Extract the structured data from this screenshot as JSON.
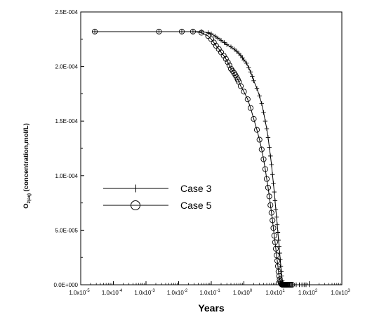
{
  "chart_data": {
    "type": "line",
    "xlabel": "Years",
    "ylabel": "O2(aq) (concentration,mol/L)",
    "ylabel_parts": {
      "main": "O",
      "sub": "2(aq)",
      "rest": " (concentration,mol/L)"
    },
    "xscale": "log",
    "xlim": [
      1e-05,
      1000
    ],
    "ylim": [
      0,
      0.00025
    ],
    "x_ticks": [
      {
        "v": 1e-05,
        "label": "1.0x10",
        "exp": "-5"
      },
      {
        "v": 0.0001,
        "label": "1.0x10",
        "exp": "-4"
      },
      {
        "v": 0.001,
        "label": "1.0x10",
        "exp": "-3"
      },
      {
        "v": 0.01,
        "label": "1.0x10",
        "exp": "-2"
      },
      {
        "v": 0.1,
        "label": "1.0x10",
        "exp": "-1"
      },
      {
        "v": 1,
        "label": "1.0x10",
        "exp": "0"
      },
      {
        "v": 10,
        "label": "1.0x10",
        "exp": "1"
      },
      {
        "v": 100,
        "label": "1.0x10",
        "exp": "2"
      },
      {
        "v": 1000,
        "label": "1.0x10",
        "exp": "3"
      }
    ],
    "y_ticks": [
      {
        "v": 0,
        "label": "0.0E+000"
      },
      {
        "v": 5e-05,
        "label": "5.0E-005"
      },
      {
        "v": 0.0001,
        "label": "1.0E-004"
      },
      {
        "v": 0.00015,
        "label": "1.5E-004"
      },
      {
        "v": 0.0002,
        "label": "2.0E-004"
      },
      {
        "v": 0.00025,
        "label": "2.5E-004"
      }
    ],
    "legend_position": "left-middle",
    "grid": false,
    "series": [
      {
        "name": "Case 3",
        "marker": "plus",
        "x": [
          2.7e-05,
          0.0025,
          0.0125,
          0.0275,
          0.05,
          0.08,
          0.1,
          0.13,
          0.16,
          0.2,
          0.25,
          0.3,
          0.4,
          0.5,
          0.6,
          0.7,
          0.8,
          0.9,
          1.0,
          1.2,
          1.4,
          1.6,
          1.8,
          2.0,
          2.5,
          3.0,
          3.5,
          4.0,
          4.5,
          5.0,
          5.5,
          6.0,
          6.5,
          7.0,
          7.5,
          8.0,
          8.5,
          9.0,
          9.5,
          10.0,
          10.5,
          11.0,
          11.5,
          12.0,
          12.5,
          13.0,
          13.5,
          14.0,
          14.5,
          15.0,
          15.5,
          16.0,
          16.5,
          17.0,
          17.5,
          18.0,
          19.0,
          20.0,
          22.0,
          25.0,
          30.0,
          40.0,
          50.0,
          60.0,
          70.0,
          80.0,
          100.0
        ],
        "y": [
          0.000232,
          0.000232,
          0.000232,
          0.000232,
          0.000232,
          0.000231,
          0.00023,
          0.000228,
          0.000226,
          0.000224,
          0.000222,
          0.00022,
          0.000218,
          0.000216,
          0.000214,
          0.000212,
          0.00021,
          0.000208,
          0.000206,
          0.000203,
          0.000199,
          0.000195,
          0.000191,
          0.000187,
          0.00018,
          0.000173,
          0.000166,
          0.000158,
          0.00015,
          0.000143,
          0.000135,
          0.000126,
          0.000118,
          0.00011,
          0.000101,
          9.3e-05,
          8.5e-05,
          7.7e-05,
          6.9e-05,
          6.2e-05,
          5.5e-05,
          4.8e-05,
          4.1e-05,
          3.5e-05,
          2.9e-05,
          2.3e-05,
          1.7e-05,
          1.2e-05,
          8e-06,
          4e-06,
          2e-06,
          8e-07,
          2e-07,
          0.0,
          0.0,
          0.0,
          0.0,
          0.0,
          0.0,
          0.0,
          0.0,
          0.0,
          0.0,
          0.0,
          0.0,
          0.0,
          0.0
        ]
      },
      {
        "name": "Case 5",
        "marker": "circle",
        "x": [
          2.7e-05,
          0.0025,
          0.0125,
          0.0275,
          0.05,
          0.08,
          0.1,
          0.12,
          0.14,
          0.17,
          0.2,
          0.24,
          0.28,
          0.32,
          0.36,
          0.4,
          0.45,
          0.5,
          0.55,
          0.6,
          0.65,
          0.7,
          0.8,
          1.0,
          1.3,
          1.6,
          2.0,
          2.5,
          3.0,
          3.5,
          4.0,
          4.5,
          5.0,
          5.5,
          6.0,
          6.5,
          7.0,
          7.5,
          8.0,
          8.5,
          9.0,
          9.5,
          10.0,
          10.5,
          11.0,
          11.5,
          12.0,
          12.5,
          13.0,
          13.5,
          14.0,
          14.5,
          15.0,
          15.5,
          16.0,
          16.5,
          17.0,
          17.5,
          18.0,
          18.5,
          19.0,
          20.0,
          21.0,
          23.0,
          25.0,
          27.0,
          30.0
        ],
        "y": [
          0.000232,
          0.000232,
          0.000232,
          0.000232,
          0.000231,
          0.000228,
          0.000225,
          0.000222,
          0.000219,
          0.000216,
          0.000213,
          0.00021,
          0.000207,
          0.000204,
          0.000201,
          0.000198,
          0.000196,
          0.000194,
          0.000192,
          0.00019,
          0.000188,
          0.000186,
          0.000182,
          0.000177,
          0.00017,
          0.000162,
          0.000152,
          0.000142,
          0.000133,
          0.000124,
          0.000115,
          0.000106,
          9.7e-05,
          8.9e-05,
          8.1e-05,
          7.3e-05,
          6.6e-05,
          5.9e-05,
          5.2e-05,
          4.5e-05,
          3.9e-05,
          3.3e-05,
          2.7e-05,
          2.2e-05,
          1.7e-05,
          1.2e-05,
          8e-06,
          5e-06,
          3e-06,
          1.5e-06,
          6e-07,
          2e-07,
          0.0,
          0.0,
          0.0,
          0.0,
          0.0,
          0.0,
          0.0,
          0.0,
          0.0,
          0.0,
          0.0,
          0.0,
          0.0,
          0.0,
          0.0
        ]
      }
    ]
  }
}
